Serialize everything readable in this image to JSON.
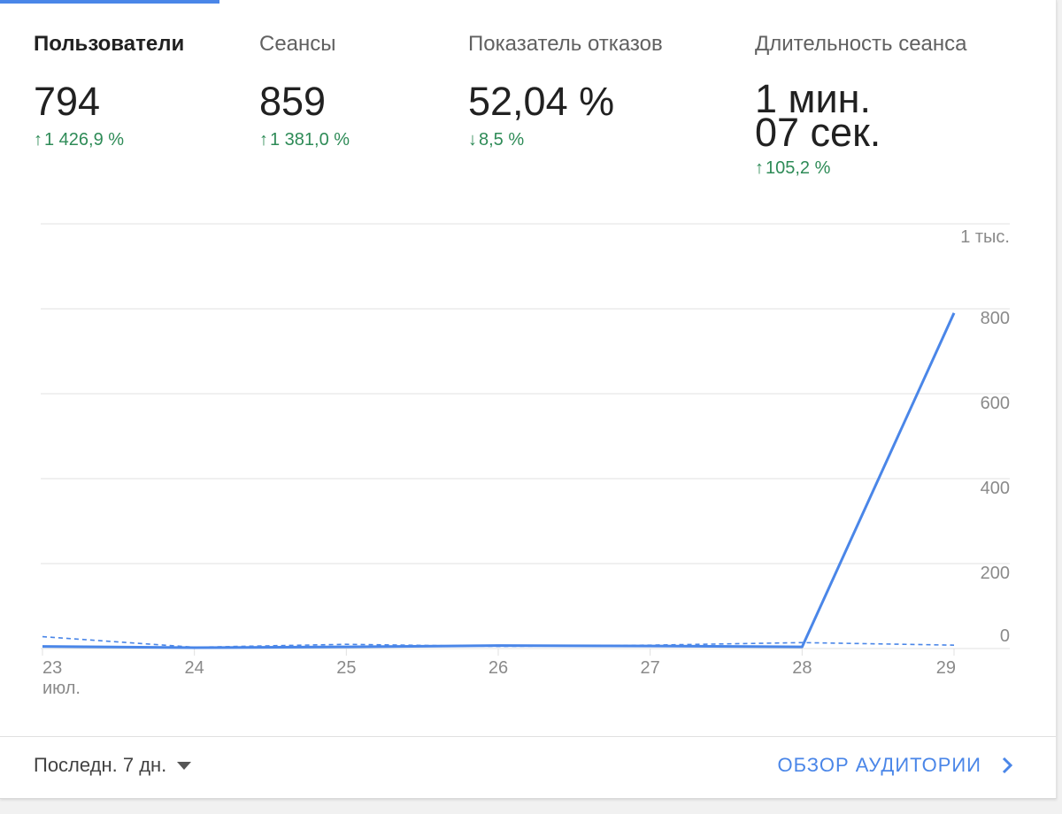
{
  "metrics": [
    {
      "label": "Пользователи",
      "value": "794",
      "change": "1 426,9 %",
      "direction": "up"
    },
    {
      "label": "Сеансы",
      "value": "859",
      "change": "1 381,0 %",
      "direction": "up"
    },
    {
      "label": "Показатель отказов",
      "value": "52,04 %",
      "change": "8,5 %",
      "direction": "down"
    },
    {
      "label": "Длительность сеанса",
      "value_line1": "1 мин.",
      "value_line2": "07 сек.",
      "change": "105,2 %",
      "direction": "up"
    }
  ],
  "colors": {
    "accent": "#4a86e8",
    "positive": "#2e8b57",
    "grid": "#e0e0e0",
    "tick": "#8a8a8a"
  },
  "chart_data": {
    "type": "line",
    "categories": [
      "23",
      "24",
      "25",
      "26",
      "27",
      "28",
      "29"
    ],
    "category_sublabel_first": "июл.",
    "series": [
      {
        "values": [
          5,
          2,
          4,
          7,
          6,
          4,
          790
        ],
        "style": "solid"
      },
      {
        "values": [
          28,
          3,
          10,
          5,
          8,
          14,
          8
        ],
        "style": "dashed"
      }
    ],
    "yticks": [
      "0",
      "200",
      "400",
      "600",
      "800",
      "1 тыс."
    ],
    "ylim": [
      0,
      1000
    ],
    "grid": true
  },
  "footer": {
    "period_label": "Последн. 7 дн.",
    "overview_label": "ОБЗОР АУДИТОРИИ"
  }
}
